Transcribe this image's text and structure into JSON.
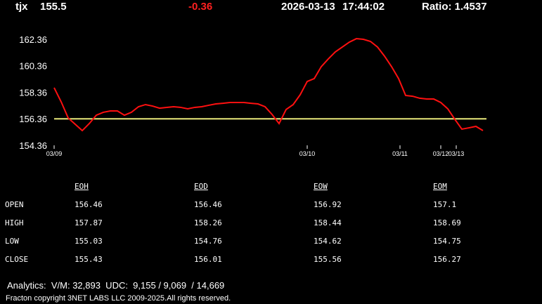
{
  "header": {
    "symbol": "tjx",
    "price": "155.5",
    "change": "-0.36",
    "date": "2026-03-13",
    "time": "17:44:02",
    "ratio": "Ratio: 1.4537"
  },
  "chart_data": {
    "type": "line",
    "color": "#ff1010",
    "values": [
      158.7,
      157.64,
      156.42,
      155.95,
      155.47,
      156.0,
      156.63,
      156.85,
      156.95,
      156.95,
      156.63,
      156.85,
      157.27,
      157.43,
      157.32,
      157.16,
      157.22,
      157.27,
      157.22,
      157.11,
      157.22,
      157.27,
      157.38,
      157.48,
      157.53,
      157.59,
      157.59,
      157.59,
      157.53,
      157.48,
      157.27,
      156.69,
      156.0,
      157.06,
      157.43,
      158.17,
      159.17,
      159.39,
      160.29,
      160.87,
      161.4,
      161.77,
      162.14,
      162.4,
      162.35,
      162.19,
      161.77,
      161.08,
      160.29,
      159.39,
      158.12,
      158.06,
      157.91,
      157.85,
      157.85,
      157.59,
      157.11,
      156.32,
      155.58,
      155.68,
      155.79,
      155.47
    ],
    "xlim": [
      0,
      61.5
    ],
    "xticks": [
      {
        "value": 0,
        "label": "03/09"
      },
      {
        "value": 36,
        "label": "03/10"
      },
      {
        "value": 49.2,
        "label": "03/11"
      },
      {
        "value": 55,
        "label": "03/12"
      },
      {
        "value": 57.2,
        "label": "03/13"
      }
    ],
    "ylim": [
      154.36,
      162.9
    ],
    "yticks": [
      154.36,
      156.36,
      158.36,
      160.36,
      162.36
    ],
    "reference_line": 156.36,
    "reference_color": "#e8e87a"
  },
  "table": {
    "columns": [
      "EOH",
      "EOD",
      "EOW",
      "EOM"
    ],
    "rows": [
      [
        "OPEN",
        "156.46",
        "156.46",
        "156.92",
        "157.1"
      ],
      [
        "HIGH",
        "157.87",
        "158.26",
        "158.44",
        "158.69"
      ],
      [
        "LOW",
        "155.03",
        "154.76",
        "154.62",
        "154.75"
      ],
      [
        "CLOSE",
        "155.43",
        "156.01",
        "155.56",
        "156.27"
      ]
    ]
  },
  "footer": {
    "analytics": "Analytics:  V/M: 32,893  UDC:  9,155 / 9,069  / 14,669",
    "copyright": "Fracton copyright 3NET LABS LLC 2009-2025.All rights reserved."
  }
}
